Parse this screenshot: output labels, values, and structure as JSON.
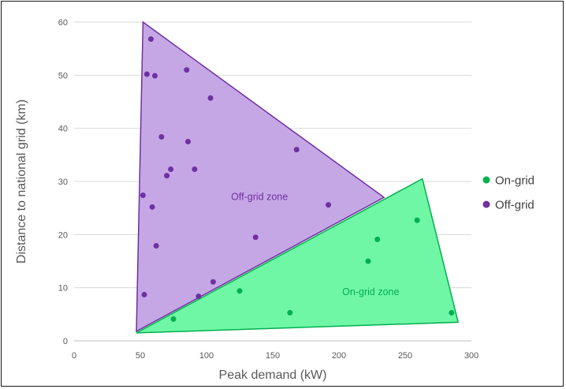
{
  "chart_data": {
    "type": "scatter",
    "xlabel": "Peak demand (kW)",
    "ylabel": "Distance to national grid (km)",
    "xlim": [
      0,
      300
    ],
    "ylim": [
      0,
      60
    ],
    "x_ticks": [
      0,
      50,
      100,
      150,
      200,
      250,
      300
    ],
    "y_ticks": [
      0,
      10,
      20,
      30,
      40,
      50,
      60
    ],
    "grid": "horizontal",
    "legend_position": "right",
    "series": [
      {
        "name": "On-grid",
        "color": "#00b050",
        "points": [
          [
            75,
            4.1
          ],
          [
            125,
            9.4
          ],
          [
            163,
            5.3
          ],
          [
            222,
            15
          ],
          [
            229,
            19.1
          ],
          [
            259,
            22.7
          ],
          [
            285,
            5.3
          ]
        ]
      },
      {
        "name": "Off-grid",
        "color": "#7030a0",
        "points": [
          [
            58,
            56.8
          ],
          [
            55,
            50.2
          ],
          [
            61,
            49.9
          ],
          [
            85,
            51
          ],
          [
            103,
            45.7
          ],
          [
            66,
            38.4
          ],
          [
            86,
            37.5
          ],
          [
            168,
            36
          ],
          [
            73,
            32.3
          ],
          [
            91,
            32.3
          ],
          [
            70,
            31.1
          ],
          [
            52,
            27.4
          ],
          [
            59,
            25.2
          ],
          [
            192,
            25.6
          ],
          [
            137,
            19.5
          ],
          [
            62,
            17.9
          ],
          [
            105,
            11.1
          ],
          [
            53,
            8.7
          ],
          [
            94,
            8.4
          ]
        ]
      }
    ],
    "zones": [
      {
        "label": "Off-grid zone",
        "fill": "#c5a7e6",
        "stroke": "#7030a0",
        "text_color": "#7030a0",
        "vertices": [
          [
            52,
            60
          ],
          [
            234,
            27
          ],
          [
            47,
            1.8
          ]
        ],
        "label_at": [
          140,
          26.5
        ]
      },
      {
        "label": "On-grid zone",
        "fill": "#6ff7a6",
        "stroke": "#00b050",
        "text_color": "#00b050",
        "vertices": [
          [
            47,
            1.5
          ],
          [
            263,
            30.5
          ],
          [
            290,
            3.5
          ]
        ],
        "label_at": [
          224,
          8.6
        ]
      }
    ]
  }
}
